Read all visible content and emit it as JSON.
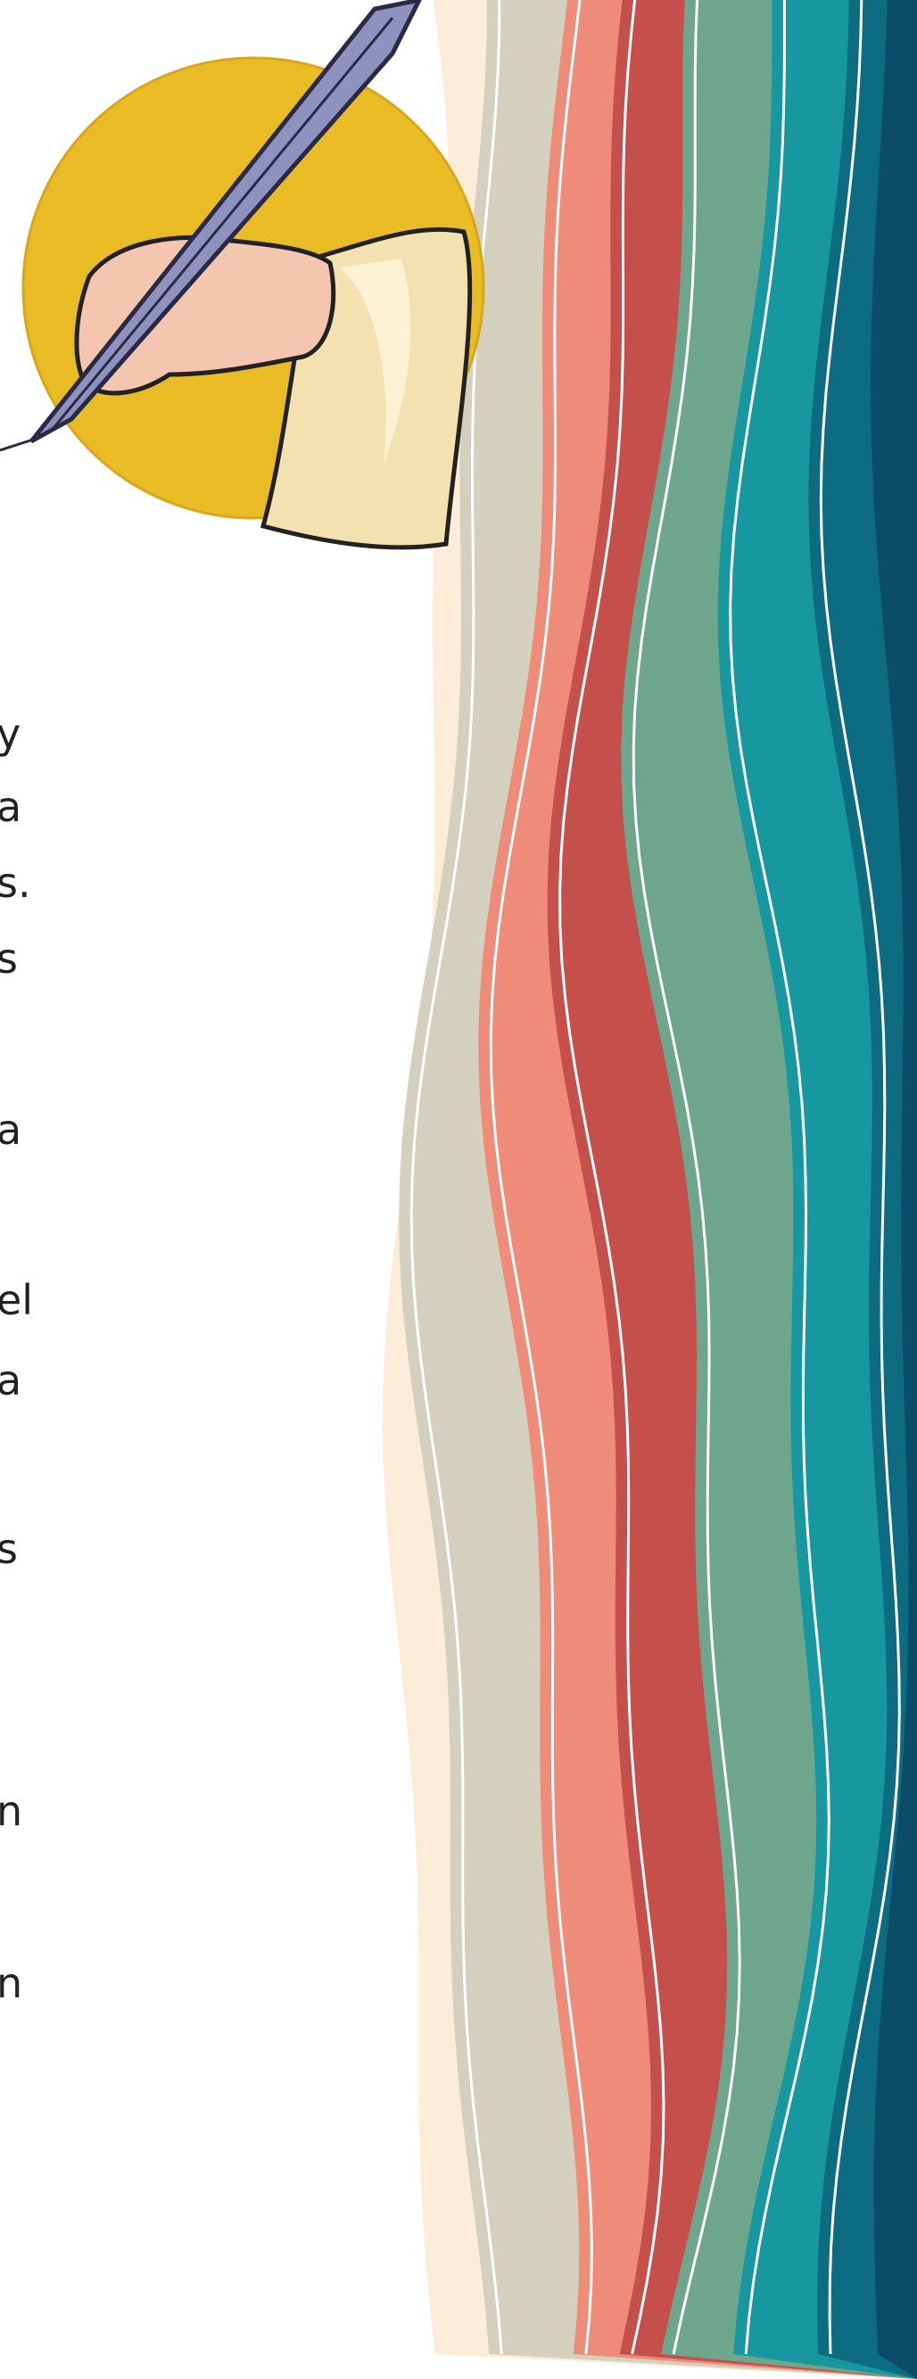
{
  "text_fragments": [
    "y",
    "a",
    "s.",
    "s",
    "a",
    "el",
    "a",
    "s",
    "n",
    "n"
  ]
}
